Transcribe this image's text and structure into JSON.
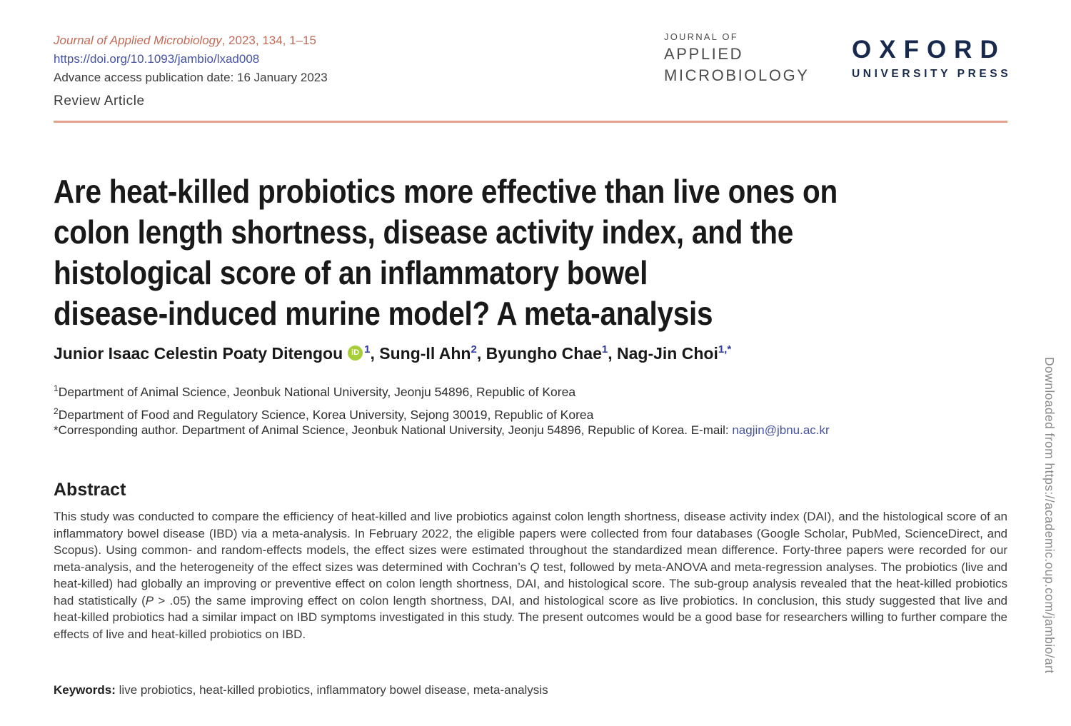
{
  "header": {
    "citation": {
      "journal_italic": "Journal of Applied Microbiology",
      "journal_rest": ", 2023, 134, 1–15",
      "doi": "https://doi.org/10.1093/jambio/lxad008",
      "advance_access": "Advance access publication date: 16 January 2023",
      "article_type": "Review Article"
    },
    "journal_logo": {
      "line1": "JOURNAL OF",
      "line2": "APPLIED",
      "line3": "MICROBIOLOGY"
    },
    "oup_logo": {
      "line1": "OXFORD",
      "line2": "UNIVERSITY PRESS"
    }
  },
  "article": {
    "title_lines": [
      "Are heat-killed probiotics more effective than live ones on",
      "colon length shortness, disease activity index, and the",
      "histological score of an inflammatory bowel",
      "disease-induced murine model? A meta-analysis"
    ],
    "authors": [
      {
        "name": "Junior Isaac Celestin Poaty Ditengou",
        "orcid_label": "iD",
        "sup": "1",
        "sep": ", "
      },
      {
        "name": "Sung-Il Ahn",
        "sup": "2",
        "sep": ", "
      },
      {
        "name": "Byungho Chae",
        "sup": "1",
        "sep": ", "
      },
      {
        "name": "Nag-Jin Choi",
        "sup": "1,*",
        "sep": ""
      }
    ],
    "affiliations": [
      {
        "sup": "1",
        "text": "Department of Animal Science, Jeonbuk National University, Jeonju 54896, Republic of Korea"
      },
      {
        "sup": "2",
        "text": "Department of Food and Regulatory Science, Korea University, Sejong 30019, Republic of Korea"
      }
    ],
    "corresponding": {
      "text_before_email": "*Corresponding author. Department of Animal Science, Jeonbuk National University, Jeonju 54896, Republic of Korea. E-mail: ",
      "email": "nagjin@jbnu.ac.kr"
    }
  },
  "abstract": {
    "heading": "Abstract",
    "segments": [
      {
        "text": "This study was conducted to compare the efficiency of heat-killed and live probiotics against colon length shortness, disease activity index (DAI), and the histological score of an inflammatory bowel disease (IBD) via a meta-analysis. In February 2022, the eligible papers were collected from four databases (Google Scholar, PubMed, ScienceDirect, and Scopus). Using common- and random-effects models, the effect sizes were estimated throughout the standardized mean difference. Forty-three papers were recorded for our meta-analysis, and the heterogeneity of the effect sizes was determined with Cochran’s ",
        "italic": false
      },
      {
        "text": "Q",
        "italic": true
      },
      {
        "text": " test, followed by meta-ANOVA and meta-regression analyses. The probiotics (live and heat-killed) had globally an improving or preventive effect on colon length shortness, DAI, and histological score. The sub-group analysis revealed that the heat-killed probiotics had statistically (",
        "italic": false
      },
      {
        "text": "P",
        "italic": true
      },
      {
        "text": " > .05) the same improving effect on colon length shortness, DAI, and histological score as live probiotics. In conclusion, this study suggested that live and heat-killed probiotics had a similar impact on IBD symptoms investigated in this study. The present outcomes would be a good base for researchers willing to further compare the effects of live and heat-killed probiotics on IBD.",
        "italic": false
      }
    ],
    "keywords_label": "Keywords:",
    "keywords_text": " live probiotics, heat-killed probiotics, inflammatory bowel disease, meta-analysis"
  },
  "watermark": "Downloaded from https://academic.oup.com/jambio/art",
  "colors": {
    "accent_salmon_text": "#bf6b58",
    "accent_salmon_rule": "#e2a28c",
    "link_blue": "#4552a3",
    "superscript_blue": "#2e3da0",
    "oup_navy": "#18294e",
    "orcid_green": "#a6ce39",
    "body_text": "#3c3c3c",
    "watermark_gray": "#8a8a8a"
  }
}
